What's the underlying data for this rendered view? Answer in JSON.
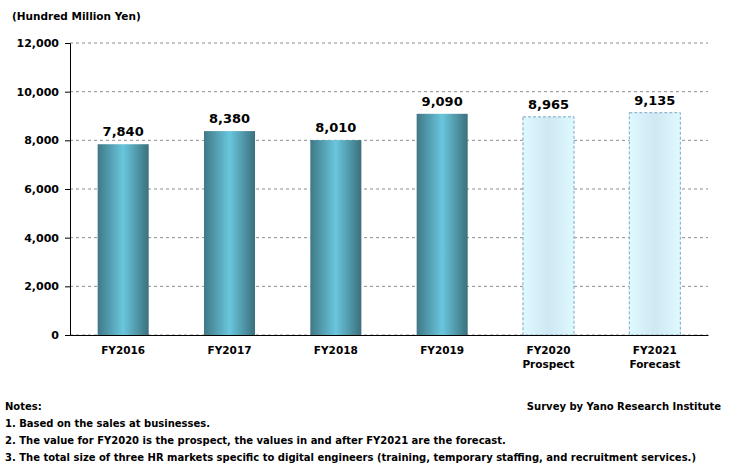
{
  "chart_data": {
    "type": "bar",
    "y_label": "(Hundred Million Yen)",
    "categories": [
      "FY2016",
      "FY2017",
      "FY2018",
      "FY2019",
      "FY2020\nProspect",
      "FY2021\nForecast"
    ],
    "values": [
      7840,
      8380,
      8010,
      9090,
      8965,
      9135
    ],
    "value_labels": [
      "7,840",
      "8,380",
      "8,010",
      "9,090",
      "8,965",
      "9,135"
    ],
    "colors": [
      "#4f95a6",
      "#4f95a6",
      "#4f95a6",
      "#4f95a6",
      "#cfe8f3",
      "#cfe8f3"
    ],
    "data_labels": true,
    "ylim": [
      0,
      12000
    ],
    "yticks": [
      0,
      {
        "value": 2000,
        "label": "2,000"
      },
      {
        "value": 4000,
        "label": "4,000"
      },
      {
        "value": 6000,
        "label": "6,000"
      },
      {
        "value": 8000,
        "label": "8,000"
      },
      {
        "value": 10000,
        "label": "10,000"
      },
      {
        "value": 12000,
        "label": "12,000"
      }
    ],
    "grid": true,
    "notes": [
      "Notes:",
      "1. Based on the sales at businesses.",
      "2. The value for FY2020 is the prospect, the values in and after FY2021 are the forecast.",
      "3. The total size of three HR markets specific to digital engineers (training, temporary staffing, and recruitment services.)"
    ],
    "source": "Survey by Yano Research Institute"
  }
}
